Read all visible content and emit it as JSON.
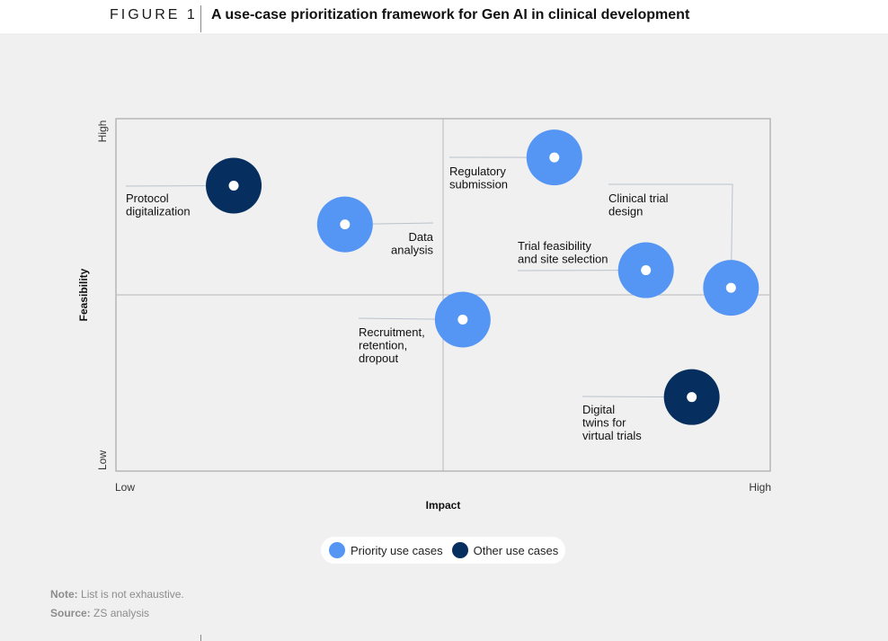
{
  "figure": {
    "label": "FIGURE 1",
    "title": "A use-case prioritization framework for Gen AI in clinical development"
  },
  "colors": {
    "priority": "#5596f5",
    "other": "#062f5f",
    "center_dot": "#ffffff",
    "leader": "#b9c2cc",
    "axis": "#9a9a9a",
    "quadrant": "#b3b8bd"
  },
  "chart_data": {
    "type": "scatter",
    "title": "A use-case prioritization framework for Gen AI in clinical development",
    "xlabel": "Impact",
    "ylabel": "Feasibility",
    "x_ticks": [
      "Low",
      "High"
    ],
    "y_ticks": [
      "Low",
      "High"
    ],
    "xlim": [
      0,
      100
    ],
    "ylim": [
      0,
      100
    ],
    "series": [
      {
        "name": "Priority use cases",
        "points": [
          {
            "label": "Data analysis",
            "x": 35,
            "y": 70
          },
          {
            "label": "Regulatory submission",
            "x": 67,
            "y": 89
          },
          {
            "label": "Recruitment, retention, dropout",
            "x": 53,
            "y": 43
          },
          {
            "label": "Trial feasibility and site selection",
            "x": 81,
            "y": 57
          },
          {
            "label": "Clinical trial design",
            "x": 94,
            "y": 52
          }
        ]
      },
      {
        "name": "Other use cases",
        "points": [
          {
            "label": "Protocol digitalization",
            "x": 18,
            "y": 81
          },
          {
            "label": "Digital twins for virtual trials",
            "x": 88,
            "y": 21
          }
        ]
      }
    ],
    "quadrant_split": {
      "x": 50,
      "y": 50
    }
  },
  "legend": {
    "priority": "Priority use cases",
    "other": "Other use cases"
  },
  "notes": {
    "note_label": "Note:",
    "note_text": "List is not exhaustive.",
    "source_label": "Source:",
    "source_text": "ZS analysis"
  }
}
